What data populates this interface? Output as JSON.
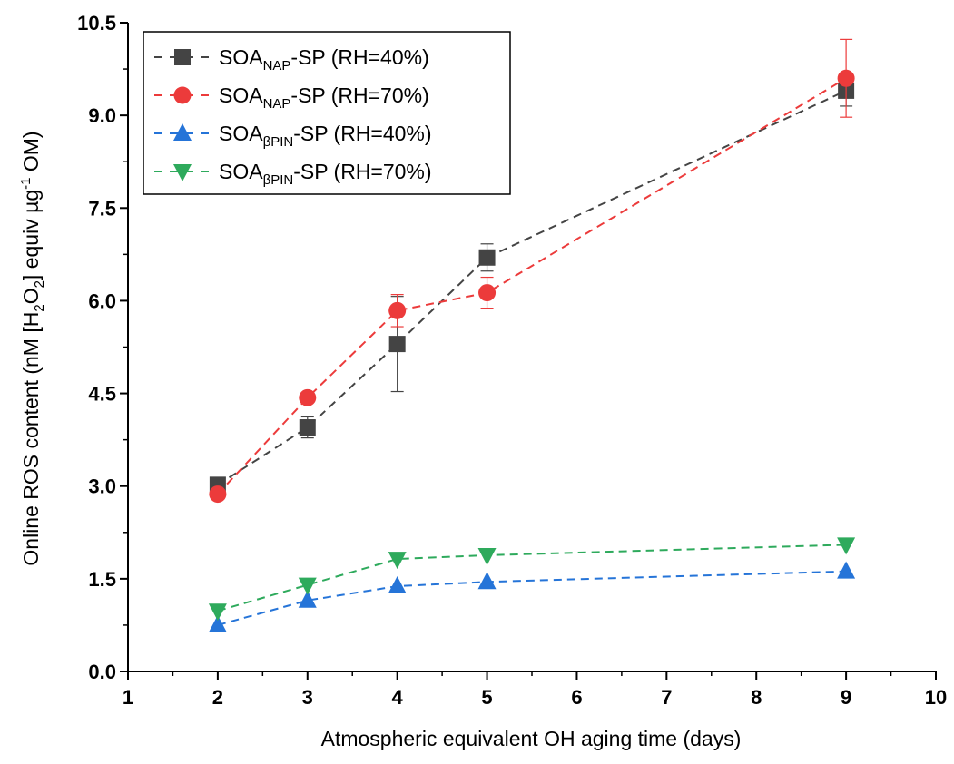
{
  "chart_data": {
    "type": "line",
    "xlabel": "Atmospheric equivalent OH aging time (days)",
    "ylabel": {
      "main": "Online ROS content (nM [H",
      "sub1": "2",
      "mid1": "O",
      "sub2": "2",
      "mid2": "] equiv µg",
      "sup": "-1",
      "end": " OM)"
    },
    "xlim": [
      1,
      10
    ],
    "ylim": [
      0,
      10.5
    ],
    "xticks": [
      "1",
      "2",
      "3",
      "4",
      "5",
      "6",
      "7",
      "8",
      "9",
      "10"
    ],
    "yticks": [
      "0.0",
      "1.5",
      "3.0",
      "4.5",
      "6.0",
      "7.5",
      "9.0",
      "10.5"
    ],
    "grid": false,
    "legend_position": "top-left",
    "series": [
      {
        "name": "SOA_NAP-SP (RH=40%)",
        "label_main": "SOA",
        "label_sub": "NAP",
        "label_rest": "-SP (RH=40%)",
        "marker": "square",
        "color": "#444444",
        "x": [
          2,
          3,
          4,
          5,
          9
        ],
        "y": [
          3.02,
          3.95,
          5.3,
          6.7,
          9.4
        ],
        "err": [
          0.05,
          0.17,
          0.77,
          0.22,
          0.25
        ]
      },
      {
        "name": "SOA_NAP-SP (RH=70%)",
        "label_main": "SOA",
        "label_sub": "NAP",
        "label_rest": "-SP (RH=70%)",
        "marker": "circle",
        "color": "#ec3b3b",
        "x": [
          2,
          3,
          4,
          5,
          9
        ],
        "y": [
          2.87,
          4.43,
          5.84,
          6.13,
          9.6
        ],
        "err": [
          0.04,
          0.07,
          0.26,
          0.25,
          0.63
        ]
      },
      {
        "name": "SOA_βPIN-SP (RH=40%)",
        "label_main": "SOA",
        "label_sub": "βPIN",
        "label_rest": "-SP (RH=40%)",
        "marker": "triangle-up",
        "color": "#2574d8",
        "x": [
          2,
          3,
          4,
          5,
          9
        ],
        "y": [
          0.75,
          1.15,
          1.38,
          1.45,
          1.62
        ],
        "err": [
          0.02,
          0.03,
          0.04,
          0.03,
          0.03
        ]
      },
      {
        "name": "SOA_βPIN-SP (RH=70%)",
        "label_main": "SOA",
        "label_sub": "βPIN",
        "label_rest": "-SP (RH=70%)",
        "marker": "triangle-down",
        "color": "#2eaa5c",
        "x": [
          2,
          3,
          4,
          5,
          9
        ],
        "y": [
          0.98,
          1.4,
          1.82,
          1.88,
          2.05
        ],
        "err": [
          0.02,
          0.03,
          0.04,
          0.03,
          0.03
        ]
      }
    ]
  }
}
